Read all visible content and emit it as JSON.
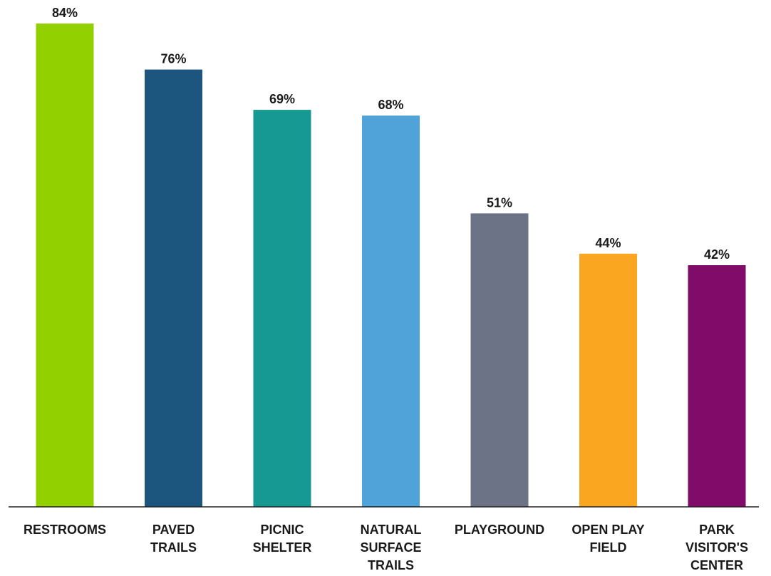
{
  "chart_data": {
    "type": "bar",
    "title": "",
    "xlabel": "",
    "ylabel": "",
    "ylim": [
      0,
      84
    ],
    "grid": false,
    "legend": "none",
    "value_suffix": "%",
    "categories": [
      "RESTROOMS",
      "PAVED TRAILS",
      "PICNIC SHELTER",
      "NATURAL SURFACE TRAILS",
      "PLAYGROUND",
      "OPEN PLAY FIELD",
      "PARK VISITOR'S CENTER"
    ],
    "category_lines": [
      [
        "RESTROOMS"
      ],
      [
        "PAVED",
        "TRAILS"
      ],
      [
        "PICNIC",
        "SHELTER"
      ],
      [
        "NATURAL",
        "SURFACE",
        "TRAILS"
      ],
      [
        "PLAYGROUND"
      ],
      [
        "OPEN PLAY",
        "FIELD"
      ],
      [
        "PARK",
        "VISITOR'S",
        "CENTER"
      ]
    ],
    "values": [
      84,
      76,
      69,
      68,
      51,
      44,
      42
    ],
    "value_labels": [
      "84%",
      "76%",
      "69%",
      "68%",
      "51%",
      "44%",
      "42%"
    ],
    "colors": [
      "#92d000",
      "#1c567f",
      "#169993",
      "#4fa3d9",
      "#6c7386",
      "#fba620",
      "#810b68"
    ]
  }
}
